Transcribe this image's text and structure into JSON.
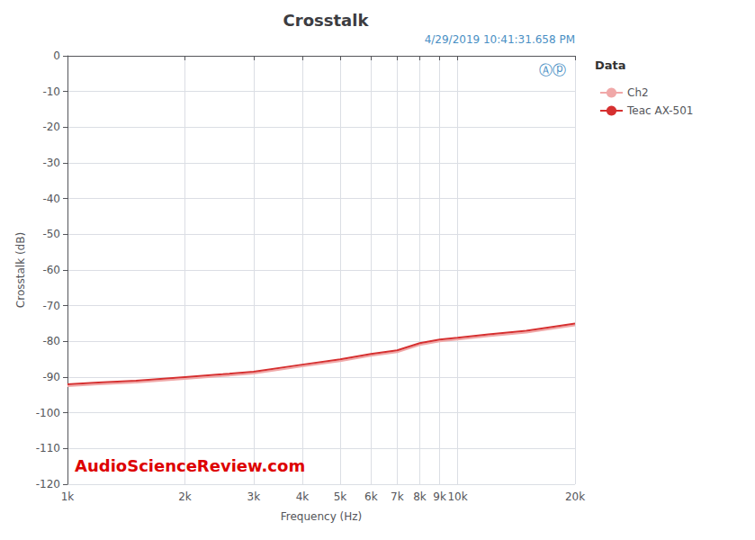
{
  "chart_data": {
    "type": "line",
    "title": "Crosstalk",
    "xlabel": "Frequency (Hz)",
    "ylabel": "Crosstalk (dB)",
    "annotations": [
      "4/29/2019 10:41:31.658 PM",
      "AudioScienceReview.com",
      "Ⓐⓟ",
      "Data"
    ],
    "x": [
      1000,
      1200,
      1500,
      2000,
      2500,
      3000,
      4000,
      5000,
      6000,
      7000,
      8000,
      9000,
      10000,
      12000,
      15000,
      20000
    ],
    "series": [
      {
        "name": "Ch2",
        "color": "#f0a8a8",
        "values": [
          -92.5,
          -92.0,
          -91.5,
          -90.5,
          -89.7,
          -89.0,
          -87.0,
          -85.5,
          -84.0,
          -83.0,
          -81.0,
          -80.0,
          -79.5,
          -78.5,
          -77.5,
          -75.5
        ]
      },
      {
        "name": "Teac AX-501",
        "color": "#d63030",
        "values": [
          -92.0,
          -91.5,
          -91.0,
          -90.0,
          -89.2,
          -88.5,
          -86.5,
          -85.0,
          -83.5,
          -82.5,
          -80.5,
          -79.5,
          -79.0,
          -78.0,
          -77.0,
          -75.0
        ]
      }
    ],
    "log": "x",
    "xlim": [
      1000,
      20000
    ],
    "xticks": [
      {
        "value": 1000,
        "label": "1k"
      },
      {
        "value": 2000,
        "label": "2k"
      },
      {
        "value": 3000,
        "label": "3k"
      },
      {
        "value": 4000,
        "label": "4k"
      },
      {
        "value": 5000,
        "label": "5k"
      },
      {
        "value": 6000,
        "label": "6k"
      },
      {
        "value": 7000,
        "label": "7k"
      },
      {
        "value": 8000,
        "label": "8k"
      },
      {
        "value": 9000,
        "label": "9k"
      },
      {
        "value": 10000,
        "label": "10k"
      },
      {
        "value": 20000,
        "label": "20k"
      }
    ],
    "ylim": [
      -120,
      0
    ],
    "yticks": [
      0,
      -10,
      -20,
      -30,
      -40,
      -50,
      -60,
      -70,
      -80,
      -90,
      -100,
      -110,
      -120
    ],
    "grid": true,
    "legend": "right"
  }
}
